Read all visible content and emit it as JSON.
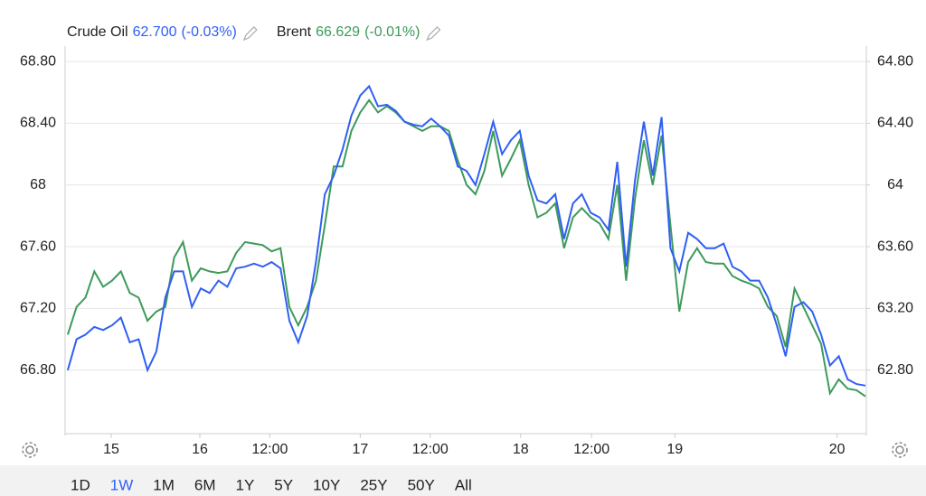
{
  "chart_data": {
    "type": "line",
    "legend": [
      {
        "name": "Crude Oil",
        "price": "62.700",
        "change": "(-0.03%)"
      },
      {
        "name": "Brent",
        "price": "66.629",
        "change": "(-0.01%)"
      }
    ],
    "x": [
      0,
      1,
      2,
      3,
      4,
      5,
      6,
      7,
      8,
      9,
      10,
      11,
      12,
      13,
      14,
      15,
      16,
      17,
      18,
      19,
      20,
      21,
      22,
      23,
      24,
      25,
      26,
      27,
      28,
      29,
      30,
      31,
      32,
      33,
      34,
      35,
      36,
      37,
      38,
      39,
      40,
      41,
      42,
      43,
      44,
      45,
      46,
      47,
      48,
      49,
      50,
      51,
      52,
      53,
      54,
      55,
      56,
      57,
      58,
      59,
      60,
      61,
      62,
      63,
      64,
      65,
      66,
      67,
      68,
      69,
      70,
      71,
      72,
      73,
      74,
      75,
      76,
      77,
      78,
      79,
      80,
      81,
      82,
      83,
      84,
      85,
      86,
      87,
      88,
      89,
      90
    ],
    "xlim": [
      -0.3,
      90.1
    ],
    "xticks": [
      {
        "value": 4.9,
        "label": "15"
      },
      {
        "value": 14.9,
        "label": "16"
      },
      {
        "value": 22.8,
        "label": "12:00"
      },
      {
        "value": 33,
        "label": "17"
      },
      {
        "value": 40.9,
        "label": "12:00"
      },
      {
        "value": 51.1,
        "label": "18"
      },
      {
        "value": 59.1,
        "label": "12:00"
      },
      {
        "value": 68.5,
        "label": "19"
      },
      {
        "value": 86.8,
        "label": "20"
      }
    ],
    "ylim": [
      66.4,
      68.9
    ],
    "yticks": [
      {
        "value": 66.8,
        "label": "66.80"
      },
      {
        "value": 67.2,
        "label": "67.20"
      },
      {
        "value": 67.6,
        "label": "67.60"
      },
      68,
      {
        "value": 68.4,
        "label": "68.40"
      },
      {
        "value": 68.8,
        "label": "68.80"
      }
    ],
    "y2lim": [
      62.4,
      64.9
    ],
    "y2ticks": [
      {
        "value": 62.8,
        "label": "62.80"
      },
      {
        "value": 63.2,
        "label": "63.20"
      },
      {
        "value": 63.6,
        "label": "63.60"
      },
      64,
      {
        "value": 64.4,
        "label": "64.40"
      },
      {
        "value": 64.8,
        "label": "64.80"
      }
    ],
    "grid": true,
    "series": [
      {
        "name": "Crude Oil",
        "color": "#2f5ff5",
        "axis": "y2",
        "values": [
          62.8,
          63.0,
          63.03,
          63.08,
          63.06,
          63.09,
          63.14,
          62.98,
          63.0,
          62.8,
          62.92,
          63.27,
          63.44,
          63.44,
          63.21,
          63.33,
          63.3,
          63.38,
          63.34,
          63.46,
          63.47,
          63.49,
          63.47,
          63.5,
          63.46,
          63.12,
          62.98,
          63.15,
          63.5,
          63.94,
          64.06,
          64.23,
          64.45,
          64.58,
          64.64,
          64.51,
          64.52,
          64.48,
          64.41,
          64.39,
          64.38,
          64.43,
          64.38,
          64.32,
          64.12,
          64.09,
          64.0,
          64.2,
          64.41,
          64.2,
          64.29,
          64.35,
          64.06,
          63.9,
          63.88,
          63.94,
          63.65,
          63.88,
          63.94,
          63.82,
          63.79,
          63.71,
          64.15,
          63.47,
          64.03,
          64.41,
          64.06,
          64.44,
          63.59,
          63.44,
          63.69,
          63.65,
          63.59,
          63.59,
          63.62,
          63.47,
          63.44,
          63.38,
          63.38,
          63.27,
          63.09,
          62.89,
          63.21,
          63.24,
          63.18,
          63.03,
          62.83,
          62.89,
          62.74,
          62.71,
          62.7
        ]
      },
      {
        "name": "Brent",
        "color": "#3d9a5a",
        "axis": "y",
        "values": [
          67.03,
          67.21,
          67.27,
          67.44,
          67.34,
          67.38,
          67.44,
          67.3,
          67.27,
          67.12,
          67.18,
          67.21,
          67.53,
          67.63,
          67.38,
          67.46,
          67.44,
          67.43,
          67.44,
          67.56,
          67.63,
          67.62,
          67.61,
          67.57,
          67.59,
          67.21,
          67.09,
          67.21,
          67.38,
          67.74,
          68.12,
          68.12,
          68.35,
          68.47,
          68.55,
          68.47,
          68.51,
          68.47,
          68.41,
          68.38,
          68.35,
          68.38,
          68.38,
          68.35,
          68.16,
          68.0,
          67.94,
          68.09,
          68.35,
          68.06,
          68.17,
          68.29,
          68.0,
          67.79,
          67.82,
          67.88,
          67.59,
          67.79,
          67.85,
          67.79,
          67.75,
          67.65,
          68.0,
          67.38,
          67.91,
          68.29,
          68.0,
          68.32,
          67.74,
          67.18,
          67.5,
          67.59,
          67.5,
          67.49,
          67.49,
          67.41,
          67.38,
          67.36,
          67.33,
          67.21,
          67.15,
          66.95,
          67.33,
          67.21,
          67.09,
          66.97,
          66.65,
          66.74,
          66.68,
          66.67,
          66.63
        ]
      }
    ],
    "range_buttons": [
      "1D",
      "1W",
      "1M",
      "6M",
      "1Y",
      "5Y",
      "10Y",
      "25Y",
      "50Y",
      "All"
    ],
    "active_range": "1W"
  }
}
